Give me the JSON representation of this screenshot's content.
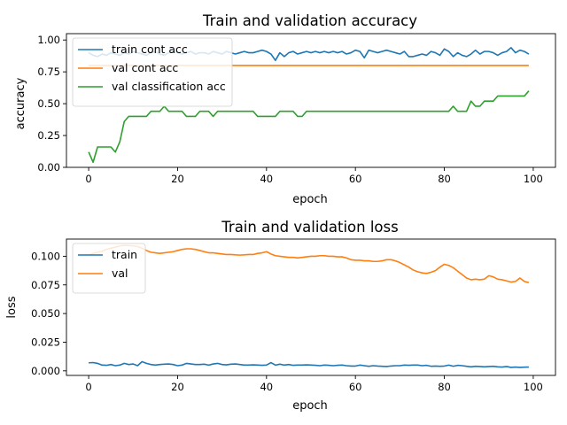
{
  "chart_data": [
    {
      "type": "line",
      "title": "Train and validation accuracy",
      "xlabel": "epoch",
      "ylabel": "accuracy",
      "xlim": [
        -5,
        105
      ],
      "ylim": [
        0.0,
        1.05
      ],
      "xticks": [
        0,
        20,
        40,
        60,
        80,
        100
      ],
      "yticks": [
        0.0,
        0.25,
        0.5,
        0.75,
        1.0
      ],
      "xtick_labels": [
        "0",
        "20",
        "40",
        "60",
        "80",
        "100"
      ],
      "ytick_labels": [
        "0.00",
        "0.25",
        "0.50",
        "0.75",
        "1.00"
      ],
      "grid": false,
      "legend_position": "top-left",
      "series": [
        {
          "name": "train cont acc",
          "color": "#1f77b4",
          "y": [
            0.9,
            0.88,
            0.87,
            0.89,
            0.88,
            0.9,
            0.89,
            0.88,
            0.9,
            0.89,
            0.91,
            0.9,
            0.89,
            0.88,
            0.9,
            0.91,
            0.89,
            0.88,
            0.9,
            0.91,
            0.9,
            0.89,
            0.9,
            0.91,
            0.89,
            0.9,
            0.9,
            0.89,
            0.91,
            0.9,
            0.89,
            0.91,
            0.9,
            0.89,
            0.9,
            0.91,
            0.9,
            0.9,
            0.91,
            0.92,
            0.91,
            0.89,
            0.84,
            0.9,
            0.87,
            0.9,
            0.91,
            0.89,
            0.9,
            0.91,
            0.9,
            0.91,
            0.9,
            0.91,
            0.9,
            0.91,
            0.9,
            0.91,
            0.89,
            0.9,
            0.92,
            0.91,
            0.86,
            0.92,
            0.91,
            0.9,
            0.91,
            0.92,
            0.91,
            0.9,
            0.89,
            0.91,
            0.87,
            0.87,
            0.88,
            0.89,
            0.88,
            0.91,
            0.9,
            0.88,
            0.93,
            0.91,
            0.87,
            0.9,
            0.88,
            0.87,
            0.89,
            0.92,
            0.89,
            0.91,
            0.91,
            0.9,
            0.88,
            0.9,
            0.91,
            0.94,
            0.9,
            0.92,
            0.91,
            0.89
          ]
        },
        {
          "name": "val cont acc",
          "color": "#ff7f0e",
          "y": [
            0.8,
            0.8,
            0.8,
            0.8,
            0.8,
            0.8,
            0.8,
            0.8,
            0.8,
            0.8,
            0.8,
            0.8,
            0.8,
            0.8,
            0.8,
            0.8,
            0.8,
            0.8,
            0.8,
            0.8,
            0.8,
            0.8,
            0.8,
            0.8,
            0.8,
            0.8,
            0.8,
            0.8,
            0.8,
            0.8,
            0.8,
            0.8,
            0.8,
            0.8,
            0.8,
            0.8,
            0.8,
            0.8,
            0.8,
            0.8,
            0.8,
            0.8,
            0.8,
            0.8,
            0.8,
            0.8,
            0.8,
            0.8,
            0.8,
            0.8,
            0.8,
            0.8,
            0.8,
            0.8,
            0.8,
            0.8,
            0.8,
            0.8,
            0.8,
            0.8,
            0.8,
            0.8,
            0.8,
            0.8,
            0.8,
            0.8,
            0.8,
            0.8,
            0.8,
            0.8,
            0.8,
            0.8,
            0.8,
            0.8,
            0.8,
            0.8,
            0.8,
            0.8,
            0.8,
            0.8,
            0.8,
            0.8,
            0.8,
            0.8,
            0.8,
            0.8,
            0.8,
            0.8,
            0.8,
            0.8,
            0.8,
            0.8,
            0.8,
            0.8,
            0.8,
            0.8,
            0.8,
            0.8,
            0.8,
            0.8
          ]
        },
        {
          "name": "val classification acc",
          "color": "#2ca02c",
          "y": [
            0.12,
            0.04,
            0.16,
            0.16,
            0.16,
            0.16,
            0.12,
            0.2,
            0.36,
            0.4,
            0.4,
            0.4,
            0.4,
            0.4,
            0.44,
            0.44,
            0.44,
            0.48,
            0.44,
            0.44,
            0.44,
            0.44,
            0.4,
            0.4,
            0.4,
            0.44,
            0.44,
            0.44,
            0.4,
            0.44,
            0.44,
            0.44,
            0.44,
            0.44,
            0.44,
            0.44,
            0.44,
            0.44,
            0.4,
            0.4,
            0.4,
            0.4,
            0.4,
            0.44,
            0.44,
            0.44,
            0.44,
            0.4,
            0.4,
            0.44,
            0.44,
            0.44,
            0.44,
            0.44,
            0.44,
            0.44,
            0.44,
            0.44,
            0.44,
            0.44,
            0.44,
            0.44,
            0.44,
            0.44,
            0.44,
            0.44,
            0.44,
            0.44,
            0.44,
            0.44,
            0.44,
            0.44,
            0.44,
            0.44,
            0.44,
            0.44,
            0.44,
            0.44,
            0.44,
            0.44,
            0.44,
            0.44,
            0.48,
            0.44,
            0.44,
            0.44,
            0.52,
            0.48,
            0.48,
            0.52,
            0.52,
            0.52,
            0.56,
            0.56,
            0.56,
            0.56,
            0.56,
            0.56,
            0.56,
            0.6
          ]
        }
      ]
    },
    {
      "type": "line",
      "title": "Train and validation loss",
      "xlabel": "epoch",
      "ylabel": "loss",
      "xlim": [
        -5,
        105
      ],
      "ylim": [
        -0.004,
        0.115
      ],
      "xticks": [
        0,
        20,
        40,
        60,
        80,
        100
      ],
      "yticks": [
        0.0,
        0.025,
        0.05,
        0.075,
        0.1
      ],
      "xtick_labels": [
        "0",
        "20",
        "40",
        "60",
        "80",
        "100"
      ],
      "ytick_labels": [
        "0.000",
        "0.025",
        "0.050",
        "0.075",
        "0.100"
      ],
      "grid": false,
      "legend_position": "top-left",
      "series": [
        {
          "name": "train",
          "color": "#1f77b4",
          "y": [
            0.007,
            0.0072,
            0.0065,
            0.005,
            0.0048,
            0.0055,
            0.0045,
            0.005,
            0.0065,
            0.0055,
            0.006,
            0.0045,
            0.008,
            0.0065,
            0.0055,
            0.005,
            0.0055,
            0.0058,
            0.006,
            0.0055,
            0.0045,
            0.005,
            0.0065,
            0.006,
            0.0055,
            0.0055,
            0.0058,
            0.005,
            0.006,
            0.0065,
            0.0055,
            0.0052,
            0.0058,
            0.006,
            0.0055,
            0.005,
            0.005,
            0.0052,
            0.005,
            0.0048,
            0.005,
            0.0072,
            0.005,
            0.0058,
            0.005,
            0.0055,
            0.0048,
            0.005,
            0.005,
            0.0052,
            0.005,
            0.0048,
            0.0045,
            0.005,
            0.0048,
            0.0045,
            0.0048,
            0.005,
            0.0045,
            0.0042,
            0.0042,
            0.005,
            0.0045,
            0.004,
            0.0045,
            0.0042,
            0.004,
            0.0038,
            0.0042,
            0.0045,
            0.0045,
            0.005,
            0.0048,
            0.005,
            0.005,
            0.0045,
            0.0048,
            0.004,
            0.0042,
            0.004,
            0.0042,
            0.005,
            0.004,
            0.0048,
            0.0045,
            0.004,
            0.0035,
            0.004,
            0.0038,
            0.0035,
            0.0038,
            0.004,
            0.0035,
            0.0033,
            0.0038,
            0.003,
            0.0033,
            0.003,
            0.0032,
            0.0033
          ]
        },
        {
          "name": "val",
          "color": "#ff7f0e",
          "y": [
            0.101,
            0.1025,
            0.1035,
            0.1045,
            0.106,
            0.107,
            0.108,
            0.109,
            0.1095,
            0.1093,
            0.109,
            0.1085,
            0.107,
            0.105,
            0.1035,
            0.103,
            0.1025,
            0.103,
            0.1035,
            0.104,
            0.105,
            0.106,
            0.1065,
            0.1065,
            0.106,
            0.105,
            0.104,
            0.103,
            0.103,
            0.1025,
            0.102,
            0.1015,
            0.1015,
            0.1012,
            0.101,
            0.1012,
            0.1015,
            0.1015,
            0.1025,
            0.103,
            0.104,
            0.102,
            0.1005,
            0.1,
            0.0995,
            0.099,
            0.099,
            0.0985,
            0.099,
            0.0995,
            0.1,
            0.1,
            0.1005,
            0.1005,
            0.1,
            0.1,
            0.0995,
            0.0995,
            0.0985,
            0.097,
            0.0965,
            0.0965,
            0.096,
            0.096,
            0.0955,
            0.0955,
            0.096,
            0.097,
            0.097,
            0.096,
            0.0945,
            0.0925,
            0.0905,
            0.088,
            0.0865,
            0.0855,
            0.085,
            0.086,
            0.0875,
            0.0905,
            0.093,
            0.092,
            0.09,
            0.087,
            0.084,
            0.081,
            0.0795,
            0.08,
            0.0795,
            0.08,
            0.083,
            0.082,
            0.08,
            0.0795,
            0.0785,
            0.0775,
            0.078,
            0.081,
            0.078,
            0.077
          ]
        }
      ]
    }
  ]
}
